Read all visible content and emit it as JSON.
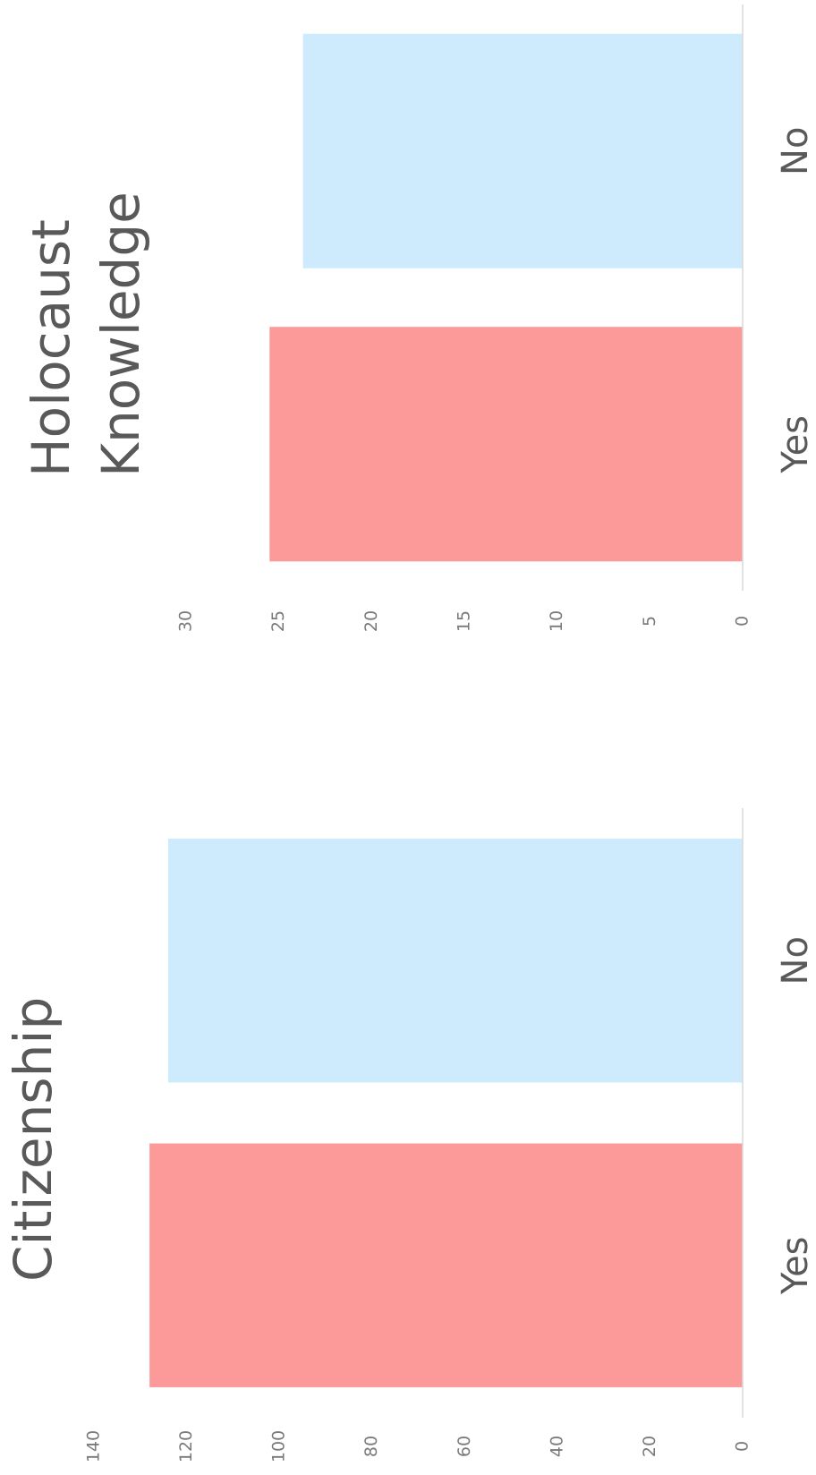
{
  "chart_data": [
    {
      "type": "bar",
      "title": "Citizenship",
      "categories": [
        "Yes",
        "No"
      ],
      "values": [
        128,
        124
      ],
      "colors": [
        "#fc9999",
        "#cdebfc"
      ],
      "ylim": [
        0,
        140
      ],
      "yticks": [
        0,
        20,
        40,
        60,
        80,
        100,
        120,
        140
      ],
      "grid": false
    },
    {
      "type": "bar",
      "title": "Holocaust Knowledge",
      "categories": [
        "Yes",
        "No"
      ],
      "values": [
        25.5,
        23.7
      ],
      "colors": [
        "#fc9999",
        "#cdebfc"
      ],
      "ylim": [
        0,
        30
      ],
      "yticks": [
        0,
        5,
        10,
        15,
        20,
        25,
        30
      ],
      "grid": false
    }
  ]
}
